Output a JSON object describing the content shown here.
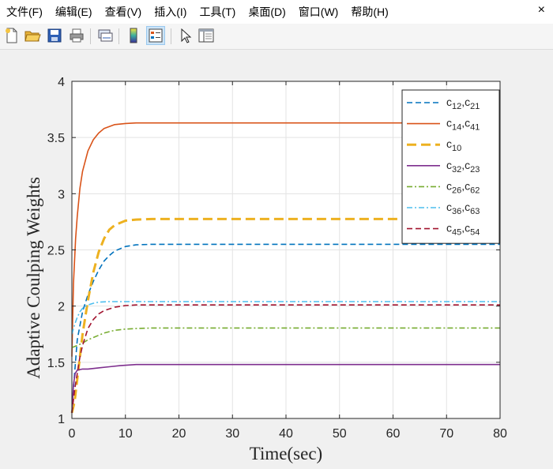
{
  "menu": [
    "文件(F)",
    "编辑(E)",
    "查看(V)",
    "插入(I)",
    "工具(T)",
    "桌面(D)",
    "窗口(W)",
    "帮助(H)"
  ],
  "window_controls": {
    "close": "×"
  },
  "toolbar": [
    {
      "name": "new-file",
      "icon": "new-file-icon"
    },
    {
      "name": "open-file",
      "icon": "folder-open-icon"
    },
    {
      "name": "save",
      "icon": "save-icon"
    },
    {
      "name": "print",
      "icon": "print-icon"
    },
    {
      "name": "link-plot",
      "icon": "link-icon"
    },
    {
      "name": "insert-colorbar",
      "icon": "colorbar-icon"
    },
    {
      "name": "insert-legend",
      "icon": "legend-icon"
    },
    {
      "name": "edit-plot",
      "icon": "pointer-icon"
    },
    {
      "name": "property-inspector",
      "icon": "panel-icon"
    }
  ],
  "chart_data": {
    "type": "line",
    "title": "",
    "xlabel": "Time(sec)",
    "ylabel": "Adaptive Coulping Weights",
    "xlim": [
      0,
      80
    ],
    "ylim": [
      1,
      4
    ],
    "xticks": [
      0,
      10,
      20,
      30,
      40,
      50,
      60,
      70,
      80
    ],
    "yticks": [
      1,
      1.5,
      2,
      2.5,
      3,
      3.5,
      4
    ],
    "grid": true,
    "legend_position": "top-right",
    "series": [
      {
        "name": "c12,c21",
        "label_base": [
          "c",
          "c"
        ],
        "label_sub": [
          "12",
          "21"
        ],
        "color": "#0072bd",
        "style": "dashed",
        "x": [
          0,
          0.5,
          1,
          2,
          3,
          4,
          5,
          6,
          7,
          8,
          10,
          12,
          15,
          20,
          80
        ],
        "values": [
          1.05,
          1.4,
          1.7,
          1.95,
          2.1,
          2.22,
          2.32,
          2.4,
          2.45,
          2.49,
          2.53,
          2.545,
          2.55,
          2.55,
          2.55
        ]
      },
      {
        "name": "c14,c41",
        "label_base": [
          "c",
          "c"
        ],
        "label_sub": [
          "14",
          "41"
        ],
        "color": "#d95319",
        "style": "solid",
        "x": [
          0,
          0.3,
          0.7,
          1,
          1.5,
          2,
          3,
          4,
          5,
          6,
          8,
          10,
          12,
          15,
          80
        ],
        "values": [
          1.55,
          2.2,
          2.6,
          2.8,
          3.05,
          3.2,
          3.38,
          3.48,
          3.54,
          3.58,
          3.615,
          3.625,
          3.63,
          3.63,
          3.63
        ]
      },
      {
        "name": "c10",
        "label_base": [
          "c"
        ],
        "label_sub": [
          "10"
        ],
        "color": "#edb120",
        "style": "dashed-thick",
        "x": [
          0,
          0.5,
          1,
          1.5,
          2,
          3,
          4,
          5,
          6,
          7,
          8,
          10,
          12,
          15,
          80
        ],
        "values": [
          1.05,
          1.15,
          1.35,
          1.55,
          1.75,
          2.05,
          2.3,
          2.48,
          2.6,
          2.68,
          2.72,
          2.76,
          2.77,
          2.775,
          2.775
        ]
      },
      {
        "name": "c32,c23",
        "label_base": [
          "c",
          "c"
        ],
        "label_sub": [
          "32",
          "23"
        ],
        "color": "#7e2f8e",
        "style": "solid",
        "x": [
          0,
          0.3,
          0.6,
          1,
          2,
          3,
          5,
          7,
          9,
          12,
          15,
          80
        ],
        "values": [
          1.05,
          1.3,
          1.4,
          1.43,
          1.44,
          1.44,
          1.45,
          1.46,
          1.47,
          1.48,
          1.48,
          1.48
        ]
      },
      {
        "name": "c26,c62",
        "label_base": [
          "c",
          "c"
        ],
        "label_sub": [
          "26",
          "62"
        ],
        "color": "#77ac30",
        "style": "dashdot",
        "x": [
          0,
          0.5,
          1,
          2,
          3,
          4,
          6,
          8,
          10,
          12,
          15,
          80
        ],
        "values": [
          1.63,
          1.64,
          1.65,
          1.67,
          1.7,
          1.72,
          1.76,
          1.785,
          1.795,
          1.8,
          1.805,
          1.805
        ]
      },
      {
        "name": "c36,c63",
        "label_base": [
          "c",
          "c"
        ],
        "label_sub": [
          "36",
          "63"
        ],
        "color": "#4dbeee",
        "style": "dashdot",
        "x": [
          0,
          0.3,
          0.7,
          1,
          1.5,
          2,
          3,
          4,
          5,
          7,
          10,
          80
        ],
        "values": [
          1.75,
          1.8,
          1.86,
          1.9,
          1.95,
          1.98,
          2.01,
          2.025,
          2.035,
          2.04,
          2.04,
          2.04
        ]
      },
      {
        "name": "c45,c54",
        "label_base": [
          "c",
          "c"
        ],
        "label_sub": [
          "45",
          "54"
        ],
        "color": "#a2142f",
        "style": "dashed",
        "x": [
          0,
          0.5,
          1,
          1.5,
          2,
          3,
          4,
          5,
          6,
          8,
          10,
          12,
          80
        ],
        "values": [
          1.05,
          1.25,
          1.4,
          1.55,
          1.65,
          1.8,
          1.88,
          1.93,
          1.96,
          1.99,
          2.005,
          2.01,
          2.01
        ]
      }
    ]
  }
}
